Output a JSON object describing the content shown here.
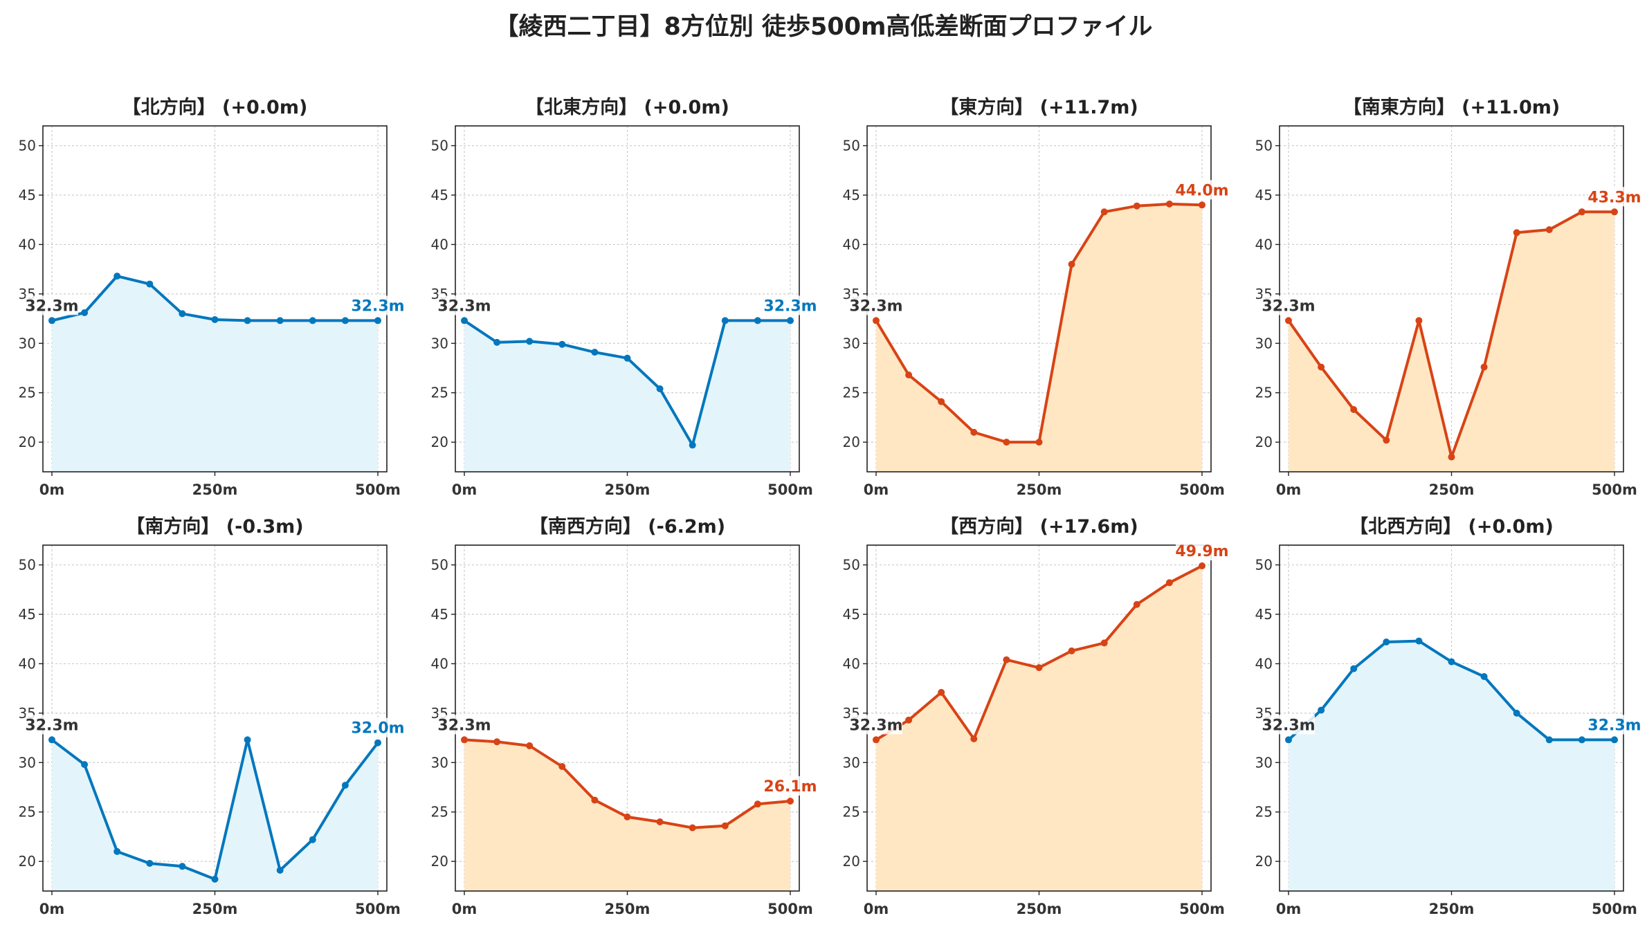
{
  "title": "【綾西二丁目】8方位別 徒歩500m高低差断面プロファイル",
  "colors": {
    "up": "#d84315",
    "down": "#0277bd",
    "up_fill": "#ffe7c4",
    "down_fill": "#e4f4fb",
    "start_label": "#333333"
  },
  "chart_data": [
    {
      "type": "area",
      "title": "【北方向】 (+0.0m)",
      "trend": "down",
      "start_label": "32.3m",
      "end_label": "32.3m",
      "x": [
        0,
        50,
        100,
        150,
        200,
        250,
        300,
        350,
        400,
        450,
        500
      ],
      "y": [
        32.3,
        33.1,
        36.8,
        36.0,
        33.0,
        32.4,
        32.3,
        32.3,
        32.3,
        32.3,
        32.3
      ],
      "xticks": [
        "0m",
        "250m",
        "500m"
      ],
      "yticks": [
        "20",
        "25",
        "30",
        "35",
        "40",
        "45",
        "50"
      ],
      "ylim": [
        17,
        52
      ],
      "grid": true
    },
    {
      "type": "area",
      "title": "【北東方向】 (+0.0m)",
      "trend": "down",
      "start_label": "32.3m",
      "end_label": "32.3m",
      "x": [
        0,
        50,
        100,
        150,
        200,
        250,
        300,
        350,
        400,
        450,
        500
      ],
      "y": [
        32.3,
        30.1,
        30.2,
        29.9,
        29.1,
        28.5,
        25.4,
        19.7,
        32.3,
        32.3,
        32.3
      ],
      "xticks": [
        "0m",
        "250m",
        "500m"
      ],
      "yticks": [
        "20",
        "25",
        "30",
        "35",
        "40",
        "45",
        "50"
      ],
      "ylim": [
        17,
        52
      ],
      "grid": true
    },
    {
      "type": "area",
      "title": "【東方向】 (+11.7m)",
      "trend": "up",
      "start_label": "32.3m",
      "end_label": "44.0m",
      "x": [
        0,
        50,
        100,
        150,
        200,
        250,
        300,
        350,
        400,
        450,
        500
      ],
      "y": [
        32.3,
        26.8,
        24.1,
        21.0,
        20.0,
        20.0,
        38.0,
        43.3,
        43.9,
        44.1,
        44.0
      ],
      "xticks": [
        "0m",
        "250m",
        "500m"
      ],
      "yticks": [
        "20",
        "25",
        "30",
        "35",
        "40",
        "45",
        "50"
      ],
      "ylim": [
        17,
        52
      ],
      "grid": true
    },
    {
      "type": "area",
      "title": "【南東方向】 (+11.0m)",
      "trend": "up",
      "start_label": "32.3m",
      "end_label": "43.3m",
      "x": [
        0,
        50,
        100,
        150,
        200,
        250,
        300,
        350,
        400,
        450,
        500
      ],
      "y": [
        32.3,
        27.6,
        23.3,
        20.2,
        32.3,
        18.5,
        27.6,
        41.2,
        41.5,
        43.3,
        43.3
      ],
      "xticks": [
        "0m",
        "250m",
        "500m"
      ],
      "yticks": [
        "20",
        "25",
        "30",
        "35",
        "40",
        "45",
        "50"
      ],
      "ylim": [
        17,
        52
      ],
      "grid": true
    },
    {
      "type": "area",
      "title": "【南方向】 (-0.3m)",
      "trend": "down",
      "start_label": "32.3m",
      "end_label": "32.0m",
      "x": [
        0,
        50,
        100,
        150,
        200,
        250,
        300,
        350,
        400,
        450,
        500
      ],
      "y": [
        32.3,
        29.8,
        21.0,
        19.8,
        19.5,
        18.2,
        32.3,
        19.1,
        22.2,
        27.7,
        32.0
      ],
      "xticks": [
        "0m",
        "250m",
        "500m"
      ],
      "yticks": [
        "20",
        "25",
        "30",
        "35",
        "40",
        "45",
        "50"
      ],
      "ylim": [
        17,
        52
      ],
      "grid": true
    },
    {
      "type": "area",
      "title": "【南西方向】 (-6.2m)",
      "trend": "up",
      "start_label": "32.3m",
      "end_label": "26.1m",
      "x": [
        0,
        50,
        100,
        150,
        200,
        250,
        300,
        350,
        400,
        450,
        500
      ],
      "y": [
        32.3,
        32.1,
        31.7,
        29.6,
        26.2,
        24.5,
        24.0,
        23.4,
        23.6,
        25.8,
        26.1
      ],
      "xticks": [
        "0m",
        "250m",
        "500m"
      ],
      "yticks": [
        "20",
        "25",
        "30",
        "35",
        "40",
        "45",
        "50"
      ],
      "ylim": [
        17,
        52
      ],
      "grid": true
    },
    {
      "type": "area",
      "title": "【西方向】 (+17.6m)",
      "trend": "up",
      "start_label": "32.3m",
      "end_label": "49.9m",
      "x": [
        0,
        50,
        100,
        150,
        200,
        250,
        300,
        350,
        400,
        450,
        500
      ],
      "y": [
        32.3,
        34.3,
        37.1,
        32.4,
        40.4,
        39.6,
        41.3,
        42.1,
        46.0,
        48.2,
        49.9
      ],
      "xticks": [
        "0m",
        "250m",
        "500m"
      ],
      "yticks": [
        "20",
        "25",
        "30",
        "35",
        "40",
        "45",
        "50"
      ],
      "ylim": [
        17,
        52
      ],
      "grid": true
    },
    {
      "type": "area",
      "title": "【北西方向】 (+0.0m)",
      "trend": "down",
      "start_label": "32.3m",
      "end_label": "32.3m",
      "x": [
        0,
        50,
        100,
        150,
        200,
        250,
        300,
        350,
        400,
        450,
        500
      ],
      "y": [
        32.3,
        35.3,
        39.5,
        42.2,
        42.3,
        40.2,
        38.7,
        35.0,
        32.3,
        32.3,
        32.3
      ],
      "xticks": [
        "0m",
        "250m",
        "500m"
      ],
      "yticks": [
        "20",
        "25",
        "30",
        "35",
        "40",
        "45",
        "50"
      ],
      "ylim": [
        17,
        52
      ],
      "grid": true
    }
  ]
}
